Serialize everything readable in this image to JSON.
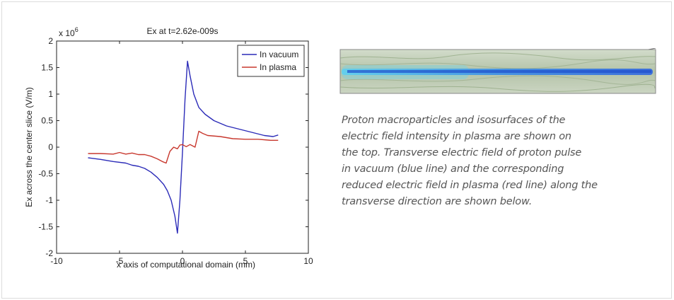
{
  "chart_data": {
    "type": "line",
    "title": "Ex at t=2.62e-009s",
    "xlabel": "x axis of computational domain (mm)",
    "ylabel": "Ex across the center slice (V/m)",
    "y_multiplier_label": "x 10",
    "y_multiplier_exponent": "6",
    "xlim": [
      -10,
      10
    ],
    "ylim": [
      -2,
      2
    ],
    "x_ticks": [
      -10,
      -5,
      0,
      5,
      10
    ],
    "y_ticks": [
      -2,
      -1.5,
      -1,
      -0.5,
      0,
      0.5,
      1,
      1.5,
      2
    ],
    "x_tick_labels": [
      "-10",
      "-5",
      "0",
      "5",
      "10"
    ],
    "y_tick_labels": [
      "-2",
      "-1.5",
      "-1",
      "-0.5",
      "0",
      "0.5",
      "1",
      "1.5",
      "2"
    ],
    "grid": false,
    "legend_position": "top-right",
    "series": [
      {
        "name": "In vacuum",
        "color": "#2b2bb8",
        "x": [
          -7.5,
          -6.5,
          -5.5,
          -4.5,
          -4.0,
          -3.5,
          -3.0,
          -2.5,
          -2.0,
          -1.5,
          -1.2,
          -0.9,
          -0.6,
          -0.4,
          -0.2,
          0.0,
          0.2,
          0.4,
          0.6,
          0.9,
          1.3,
          1.8,
          2.5,
          3.5,
          4.5,
          5.5,
          6.5,
          7.2,
          7.6
        ],
        "y": [
          -0.2,
          -0.23,
          -0.27,
          -0.3,
          -0.34,
          -0.36,
          -0.4,
          -0.47,
          -0.57,
          -0.7,
          -0.82,
          -1.0,
          -1.3,
          -1.62,
          -1.0,
          -0.1,
          0.9,
          1.62,
          1.35,
          1.0,
          0.75,
          0.62,
          0.5,
          0.4,
          0.34,
          0.28,
          0.22,
          0.2,
          0.23
        ]
      },
      {
        "name": "In plasma",
        "color": "#c8382e",
        "x": [
          -7.5,
          -6.5,
          -5.5,
          -5.0,
          -4.5,
          -4.0,
          -3.5,
          -3.0,
          -2.5,
          -2.0,
          -1.6,
          -1.3,
          -1.0,
          -0.7,
          -0.4,
          -0.2,
          0.0,
          0.3,
          0.6,
          1.0,
          1.3,
          1.6,
          2.0,
          3.0,
          4.0,
          5.0,
          6.0,
          7.0,
          7.6
        ],
        "y": [
          -0.12,
          -0.12,
          -0.13,
          -0.1,
          -0.13,
          -0.11,
          -0.14,
          -0.14,
          -0.17,
          -0.22,
          -0.27,
          -0.3,
          -0.08,
          0.0,
          -0.03,
          0.04,
          0.05,
          0.01,
          0.05,
          0.0,
          0.3,
          0.26,
          0.22,
          0.2,
          0.16,
          0.15,
          0.15,
          0.13,
          0.13
        ]
      }
    ]
  },
  "caption": {
    "lines": [
      "Proton macroparticles and isosurfaces of the",
      "electric field intensity in plasma are shown on",
      "the top. Transverse electric field of proton pulse",
      "in vacuum (blue line) and the corresponding",
      "reduced electric field in plasma (red line) along the",
      "transverse direction are shown below."
    ]
  },
  "colors": {
    "vacuum_line": "#2b2bb8",
    "plasma_line": "#c8382e",
    "caption_text": "#555555",
    "sim_background": "#b9c7ad",
    "sim_beam": "#2f7fe6",
    "sim_beam_glow": "#63d4f2"
  }
}
